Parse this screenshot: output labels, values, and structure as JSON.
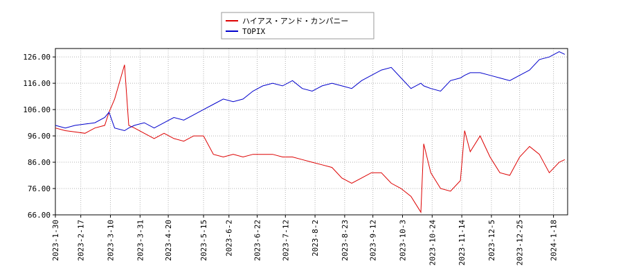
{
  "chart_data": {
    "type": "line",
    "x": [
      "2023-1-30",
      "2023-2-6",
      "2023-2-13",
      "2023-2-20",
      "2023-2-27",
      "2023-3-6",
      "2023-3-9",
      "2023-3-13",
      "2023-3-20",
      "2023-3-23",
      "2023-3-27",
      "2023-4-3",
      "2023-4-10",
      "2023-4-17",
      "2023-4-24",
      "2023-5-1",
      "2023-5-8",
      "2023-5-15",
      "2023-5-22",
      "2023-5-29",
      "2023-6-5",
      "2023-6-12",
      "2023-6-19",
      "2023-6-26",
      "2023-7-3",
      "2023-7-10",
      "2023-7-17",
      "2023-7-24",
      "2023-7-31",
      "2023-8-7",
      "2023-8-14",
      "2023-8-21",
      "2023-8-28",
      "2023-9-4",
      "2023-9-11",
      "2023-9-18",
      "2023-9-25",
      "2023-10-2",
      "2023-10-9",
      "2023-10-16",
      "2023-10-18",
      "2023-10-23",
      "2023-10-30",
      "2023-11-6",
      "2023-11-13",
      "2023-11-16",
      "2023-11-20",
      "2023-11-27",
      "2023-12-4",
      "2023-12-11",
      "2023-12-18",
      "2023-12-25",
      "2024-1-1",
      "2024-1-8",
      "2024-1-15",
      "2024-1-22",
      "2024-1-26"
    ],
    "series": [
      {
        "name": "ハイアス・アンド・カンパニー",
        "color": "#dd0000",
        "values": [
          99,
          98,
          97.5,
          97,
          99,
          100,
          105,
          110,
          123,
          100,
          99,
          97,
          95,
          97,
          95,
          94,
          96,
          96,
          89,
          88,
          89,
          88,
          89,
          89,
          89,
          88,
          88,
          87,
          86,
          85,
          84,
          80,
          78,
          80,
          82,
          82,
          78,
          76,
          73,
          67,
          93,
          82,
          76,
          75,
          79,
          98,
          90,
          96,
          88,
          82,
          81,
          88,
          92,
          89,
          82,
          86,
          87
        ]
      },
      {
        "name": "TOPIX",
        "color": "#0000cc",
        "values": [
          100,
          99,
          100,
          100.5,
          101,
          103,
          105,
          99,
          98,
          99,
          100,
          101,
          99,
          101,
          103,
          102,
          104,
          106,
          108,
          110,
          109,
          110,
          113,
          115,
          116,
          115,
          117,
          114,
          113,
          115,
          116,
          115,
          114,
          117,
          119,
          121,
          122,
          118,
          114,
          116,
          115,
          114,
          113,
          117,
          118,
          119,
          120,
          120,
          119,
          118,
          117,
          119,
          121,
          125,
          126,
          128,
          127
        ]
      }
    ],
    "xlim": [
      "2023-1-30",
      "2024-1-28"
    ],
    "xticks": [
      "2023-1-30",
      "2023-2-17",
      "2023-3-10",
      "2023-3-31",
      "2023-4-20",
      "2023-5-15",
      "2023-6-2",
      "2023-6-22",
      "2023-7-12",
      "2023-8-2",
      "2023-8-23",
      "2023-9-12",
      "2023-10-3",
      "2023-10-24",
      "2023-11-14",
      "2023-12-5",
      "2023-12-25",
      "2024-1-18"
    ],
    "ylim": [
      66,
      129.2
    ],
    "yticks": [
      {
        "value": 66,
        "label": "66.00"
      },
      {
        "value": 76,
        "label": "76.00"
      },
      {
        "value": 86,
        "label": "86.00"
      },
      {
        "value": 96,
        "label": "96.00"
      },
      {
        "value": 106,
        "label": "106.00"
      },
      {
        "value": 116,
        "label": "116.00"
      },
      {
        "value": 126,
        "label": "126.00"
      }
    ],
    "grid": true,
    "legend": "top"
  }
}
